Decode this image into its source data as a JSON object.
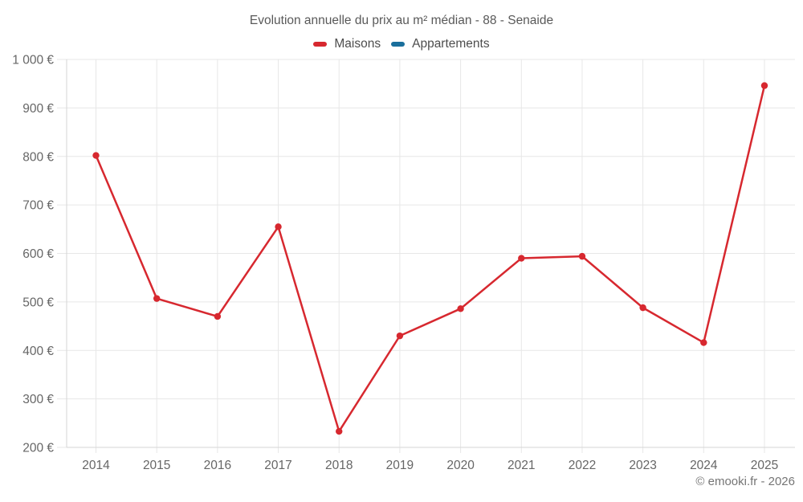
{
  "chart_data": {
    "type": "line",
    "title": "Evolution annuelle du prix au m² médian - 88 - Senaide",
    "categories": [
      "2014",
      "2015",
      "2016",
      "2017",
      "2018",
      "2019",
      "2020",
      "2021",
      "2022",
      "2023",
      "2024",
      "2025"
    ],
    "series": [
      {
        "name": "Maisons",
        "color": "#d7282f",
        "values": [
          802,
          507,
          470,
          655,
          233,
          430,
          486,
          590,
          594,
          488,
          416,
          946
        ]
      },
      {
        "name": "Appartements",
        "color": "#1a6f9c",
        "values": []
      }
    ],
    "ylim": [
      200,
      1000
    ],
    "ytick_step": 100,
    "ytick_labels": [
      "200 €",
      "300 €",
      "400 €",
      "500 €",
      "600 €",
      "700 €",
      "800 €",
      "900 €",
      "1 000 €"
    ],
    "grid": true,
    "legend_position": "top",
    "currency_suffix": "€"
  },
  "footer": {
    "copyright": "© emooki.fr - 2026"
  }
}
